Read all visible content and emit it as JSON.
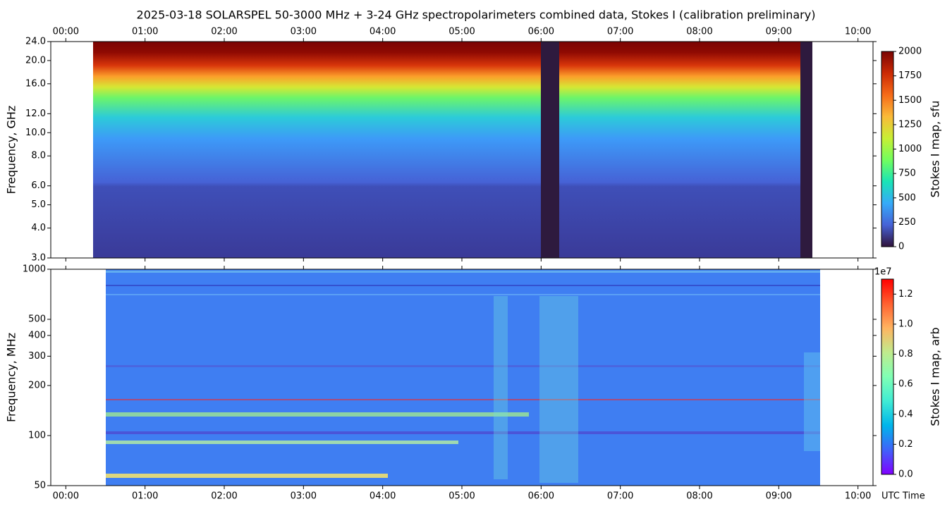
{
  "title": "2025-03-18  SOLARSPEL  50-3000 MHz  +  3-24 GHz  spectropolarimeters combined data,  Stokes I  (calibration preliminary)",
  "chart_data": [
    {
      "type": "heatmap",
      "ylabel": "Frequency, GHz",
      "yscale": "log",
      "ylim": [
        3,
        24
      ],
      "yticks": [
        {
          "value": 3,
          "label": "3.0"
        },
        {
          "value": 4,
          "label": "4.0"
        },
        {
          "value": 5,
          "label": "5.0"
        },
        {
          "value": 6,
          "label": "6.0"
        },
        {
          "value": 8,
          "label": "8.0"
        },
        {
          "value": 10,
          "label": "10.0"
        },
        {
          "value": 12,
          "label": "12.0"
        },
        {
          "value": 16,
          "label": "16.0"
        },
        {
          "value": 20,
          "label": "20.0"
        },
        {
          "value": 24,
          "label": "24.0"
        }
      ],
      "xlim": [
        -0.19,
        10.19
      ],
      "xtick_labels": "top",
      "xticks": [
        {
          "value": 0,
          "label": "00:00"
        },
        {
          "value": 1,
          "label": "01:00"
        },
        {
          "value": 2,
          "label": "02:00"
        },
        {
          "value": 3,
          "label": "03:00"
        },
        {
          "value": 4,
          "label": "04:00"
        },
        {
          "value": 5,
          "label": "05:00"
        },
        {
          "value": 6,
          "label": "06:00"
        },
        {
          "value": 7,
          "label": "07:00"
        },
        {
          "value": 8,
          "label": "08:00"
        },
        {
          "value": 9,
          "label": "09:00"
        },
        {
          "value": 10,
          "label": "10:00"
        }
      ],
      "colorbar": {
        "label": "Stokes I map, sfu",
        "colormap": "turbo",
        "clim": [
          0,
          2000
        ],
        "ticks": [
          0,
          250,
          500,
          750,
          1000,
          1250,
          1500,
          1750,
          2000
        ]
      }
    },
    {
      "type": "heatmap",
      "ylabel": "Frequency, MHz",
      "xlabel": "UTC Time",
      "yscale": "log",
      "ylim": [
        50,
        1000
      ],
      "yticks": [
        50,
        100,
        200,
        300,
        400,
        500,
        1000
      ],
      "xlim": [
        -0.19,
        10.19
      ],
      "xtick_labels": "bottom",
      "xticks": [
        {
          "value": 0,
          "label": "00:00"
        },
        {
          "value": 1,
          "label": "01:00"
        },
        {
          "value": 2,
          "label": "02:00"
        },
        {
          "value": 3,
          "label": "03:00"
        },
        {
          "value": 4,
          "label": "04:00"
        },
        {
          "value": 5,
          "label": "05:00"
        },
        {
          "value": 6,
          "label": "06:00"
        },
        {
          "value": 7,
          "label": "07:00"
        },
        {
          "value": 8,
          "label": "08:00"
        },
        {
          "value": 9,
          "label": "09:00"
        },
        {
          "value": 10,
          "label": "10:00"
        }
      ],
      "colorbar": {
        "label": "Stokes I map, arb",
        "colormap": "rainbow",
        "offset_text": "1e7",
        "clim": [
          0,
          13000000
        ],
        "ticks": [
          {
            "value": 0,
            "label": "0.0"
          },
          {
            "value": 2000000,
            "label": "0.2"
          },
          {
            "value": 4000000,
            "label": "0.4"
          },
          {
            "value": 6000000,
            "label": "0.6"
          },
          {
            "value": 8000000,
            "label": "0.8"
          },
          {
            "value": 10000000,
            "label": "1.0"
          },
          {
            "value": 12000000,
            "label": "1.2"
          }
        ]
      }
    }
  ]
}
